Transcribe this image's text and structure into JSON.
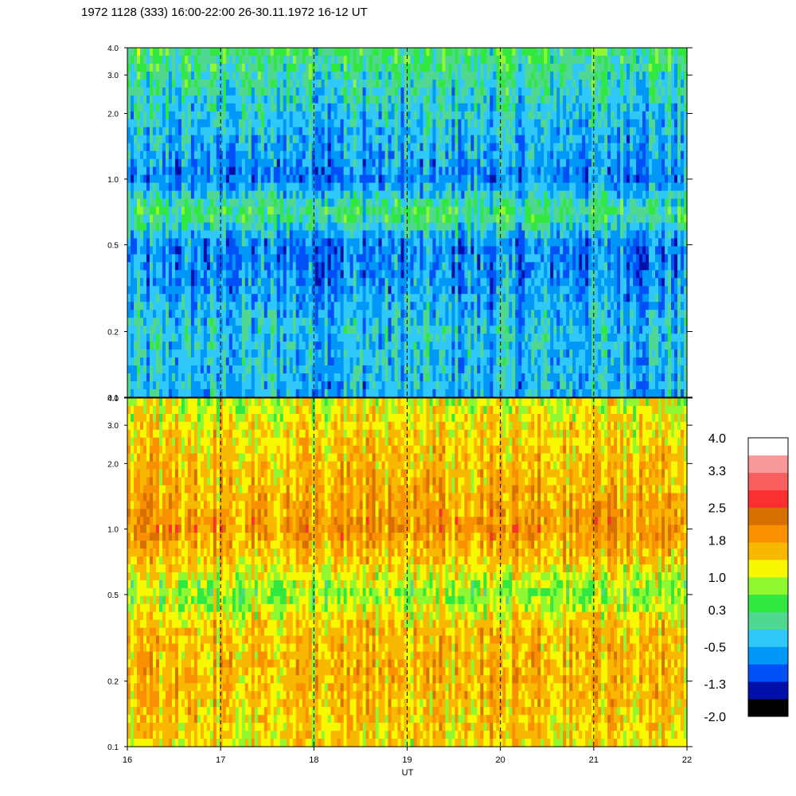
{
  "title": "1972 1128 (333) 16:00-22:00 26-30.11.1972  16-12 UT",
  "chart_data": [
    {
      "type": "heatmap",
      "panel": "upper",
      "xlabel": "",
      "ylabel": "",
      "x_ticks": [
        16,
        17,
        18,
        19,
        20,
        21,
        22
      ],
      "xlim": [
        16,
        22
      ],
      "y_scale": "log",
      "ylim": [
        0.1,
        4.0
      ],
      "y_ticks": [
        0.1,
        0.2,
        0.5,
        1.0,
        2.0,
        3.0,
        4.0
      ],
      "y_tick_labels": [
        "0.1",
        "0.2",
        "0.5",
        "1.0",
        "2.0",
        "3.0",
        "4.0"
      ],
      "dashed_hour_lines": [
        17,
        18,
        19,
        20,
        21
      ],
      "approx_level_by_frequency": {
        "frequencies": [
          0.1,
          0.2,
          0.35,
          0.5,
          0.7,
          1.0,
          1.5,
          2.0,
          3.0,
          4.0
        ],
        "levels": [
          -0.5,
          -0.3,
          -0.7,
          -0.8,
          0.3,
          -0.8,
          -0.5,
          -0.3,
          0.0,
          0.3
        ]
      }
    },
    {
      "type": "heatmap",
      "panel": "lower",
      "xlabel": "UT",
      "ylabel": "",
      "x_ticks": [
        16,
        17,
        18,
        19,
        20,
        21,
        22
      ],
      "x_tick_labels": [
        "16",
        "17",
        "18",
        "19",
        "20",
        "21",
        "22"
      ],
      "xlim": [
        16,
        22
      ],
      "y_scale": "log",
      "ylim": [
        0.1,
        4.0
      ],
      "y_ticks": [
        0.1,
        0.2,
        0.5,
        1.0,
        2.0,
        3.0,
        4.0
      ],
      "y_tick_labels": [
        "0.1",
        "0.2",
        "0.5",
        "1.0",
        "2.0",
        "3.0",
        "4.0"
      ],
      "dashed_hour_lines": [
        17,
        18,
        19,
        20,
        21
      ],
      "approx_level_by_frequency": {
        "frequencies": [
          0.1,
          0.2,
          0.35,
          0.5,
          0.7,
          1.0,
          1.3,
          2.0,
          3.0,
          4.0
        ],
        "levels": [
          1.3,
          1.6,
          1.5,
          0.7,
          1.4,
          1.9,
          1.7,
          1.5,
          1.3,
          1.0
        ]
      }
    }
  ],
  "colorbar": {
    "labels": [
      "4.0",
      "3.3",
      "2.5",
      "1.8",
      "1.0",
      "0.3",
      "-0.5",
      "-1.3",
      "-2.0"
    ],
    "colors": [
      "#000000",
      "#0010a8",
      "#0050f8",
      "#0098f8",
      "#30c8f8",
      "#50d890",
      "#30e840",
      "#90f830",
      "#f8f800",
      "#f8b800",
      "#f89000",
      "#d87000",
      "#f83030",
      "#f86060",
      "#f89898",
      "#ffffff"
    ]
  }
}
